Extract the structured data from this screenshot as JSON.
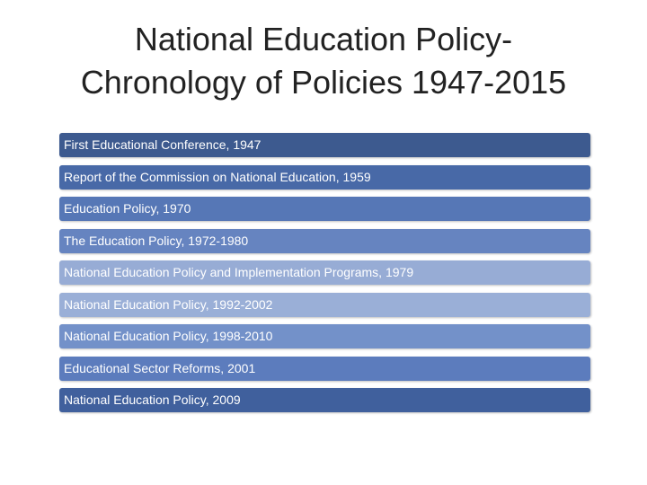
{
  "title": {
    "lines": [
      "National Education Policy-",
      "Chronology of Policies 1947-2015"
    ]
  },
  "items": [
    "First Educational Conference, 1947",
    "Report of the Commission on National Education, 1959",
    "Education Policy, 1970",
    "The Education Policy, 1972-1980",
    "National Education Policy and Implementation Programs, 1979",
    "National Education Policy, 1992-2002",
    "National Education Policy, 1998-2010",
    "Educational Sector Reforms, 2001",
    "National Education Policy, 2009"
  ]
}
